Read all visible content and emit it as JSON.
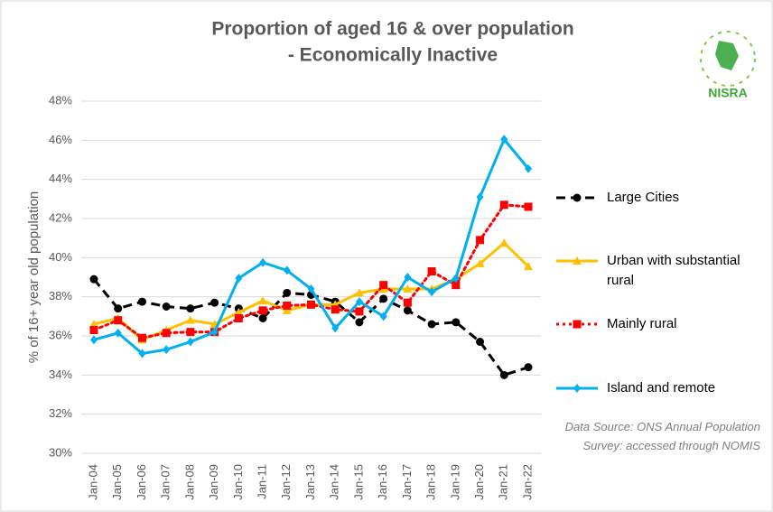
{
  "chart_data": {
    "type": "line",
    "title": "Proportion of aged 16 & over population",
    "subtitle": "- Economically Inactive",
    "y_label": "% of 16+ year old population",
    "note": [
      "Data Source: ONS Annual Population",
      "Survey: accessed through NOMIS"
    ],
    "logo_text": "NISRA",
    "categories": [
      "Jan-04",
      "Jan-05",
      "Jan-06",
      "Jan-07",
      "Jan-08",
      "Jan-09",
      "Jan-10",
      "Jan-11",
      "Jan-12",
      "Jan-13",
      "Jan-14",
      "Jan-15",
      "Jan-16",
      "Jan-17",
      "Jan-18",
      "Jan-19",
      "Jan-20",
      "Jan-21",
      "Jan-22"
    ],
    "ylim": [
      30,
      48
    ],
    "yticks": [
      {
        "value": 30,
        "label": "30%"
      },
      {
        "value": 32,
        "label": "32%"
      },
      {
        "value": 34,
        "label": "34%"
      },
      {
        "value": 36,
        "label": "36%"
      },
      {
        "value": 38,
        "label": "38%"
      },
      {
        "value": 40,
        "label": "40%"
      },
      {
        "value": 42,
        "label": "42%"
      },
      {
        "value": 44,
        "label": "44%"
      },
      {
        "value": 46,
        "label": "46%"
      },
      {
        "value": 48,
        "label": "48%"
      }
    ],
    "grid": true,
    "legend": "right",
    "series": [
      {
        "name": "Large Cities",
        "color": "#000000",
        "dash": "dashed",
        "marker": "circle",
        "values": [
          38.9,
          37.4,
          37.75,
          37.5,
          37.4,
          37.7,
          37.4,
          36.9,
          38.2,
          38.1,
          37.75,
          36.7,
          37.9,
          37.3,
          36.6,
          36.7,
          35.7,
          34.0,
          34.4
        ]
      },
      {
        "name": "Urban with substantial rural",
        "color": "#ffc000",
        "dash": "solid",
        "marker": "triangle",
        "values": [
          36.6,
          36.9,
          35.8,
          36.3,
          36.8,
          36.6,
          37.2,
          37.8,
          37.3,
          37.6,
          37.6,
          38.2,
          38.4,
          38.4,
          38.4,
          38.9,
          39.7,
          40.75,
          39.55
        ]
      },
      {
        "name": "Mainly rural",
        "color": "#ff0000",
        "dash": "dotted",
        "marker": "square",
        "values": [
          36.3,
          36.8,
          35.9,
          36.15,
          36.2,
          36.2,
          36.9,
          37.3,
          37.55,
          37.6,
          37.35,
          37.25,
          38.6,
          37.7,
          39.3,
          38.6,
          40.9,
          42.7,
          42.6
        ]
      },
      {
        "name": "Island and remote",
        "color": "#00b0f0",
        "dash": "solid",
        "marker": "diamond",
        "values": [
          35.8,
          36.15,
          35.1,
          35.3,
          35.7,
          36.2,
          38.95,
          39.75,
          39.35,
          38.4,
          36.4,
          37.75,
          37.0,
          39.0,
          38.25,
          38.95,
          43.1,
          46.05,
          44.55
        ]
      }
    ]
  }
}
